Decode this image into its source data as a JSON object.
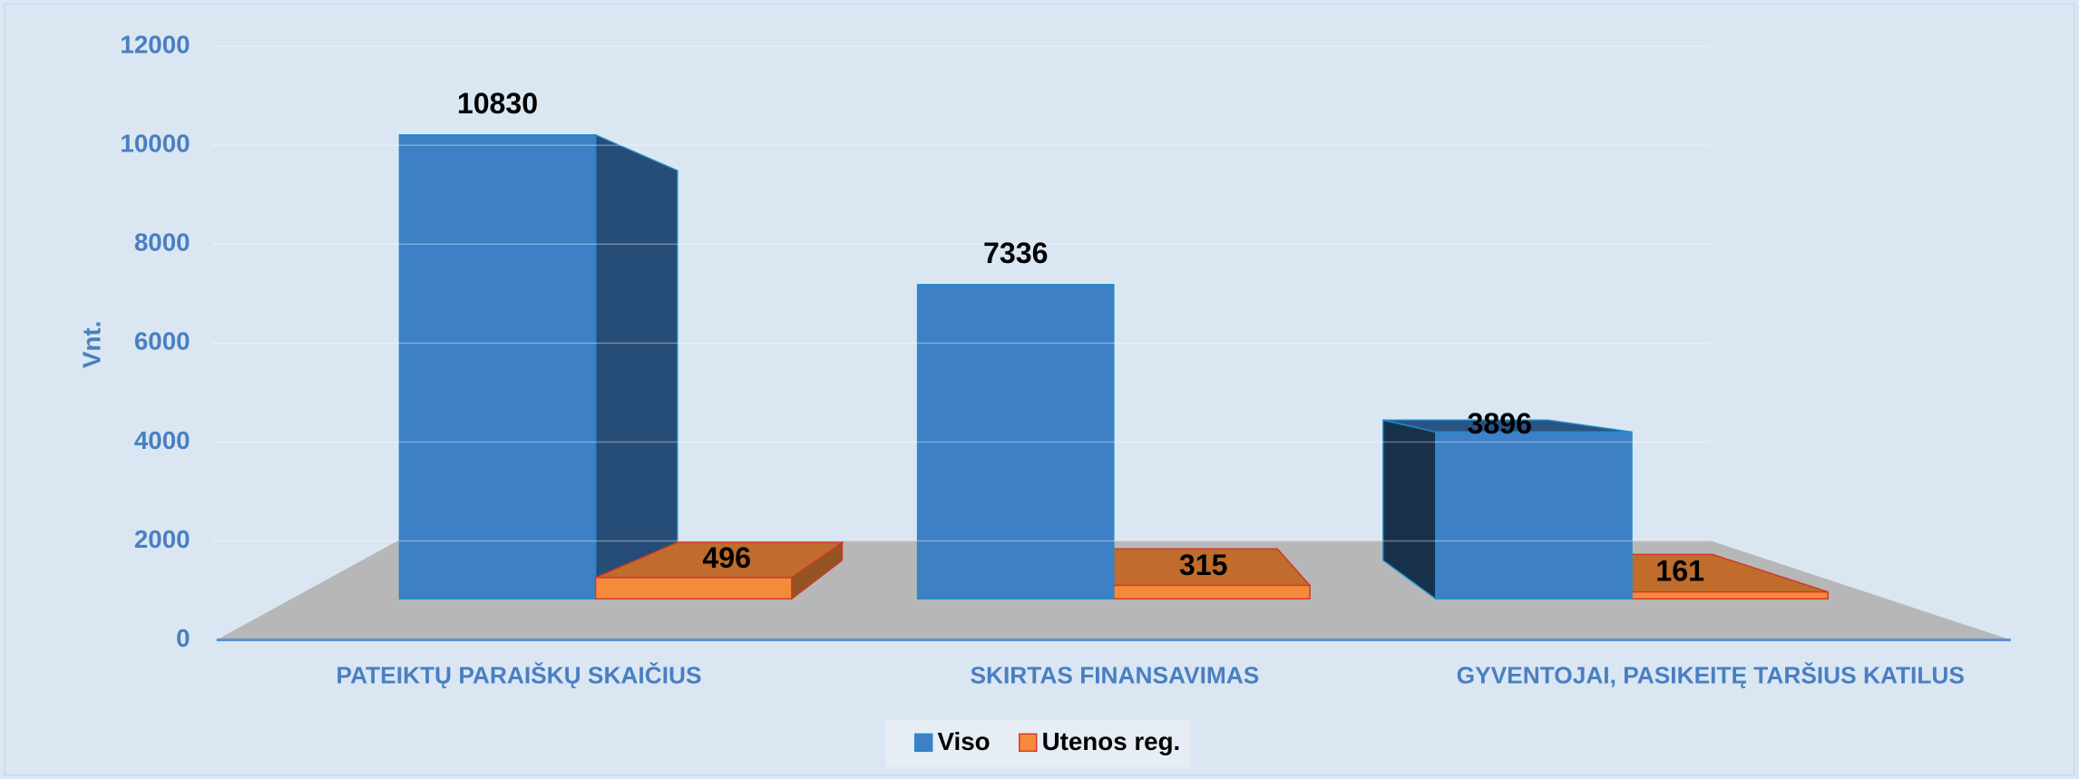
{
  "chart_data": {
    "type": "bar3d",
    "y_axis_label": "Vnt.",
    "categories": [
      "PATEIKTŲ PARAIŠKŲ SKAIČIUS",
      "SKIRTAS FINANSAVIMAS",
      "GYVENTOJAI, PASIKEITĘ TARŠIUS KATILUS"
    ],
    "series": [
      {
        "name": "Viso",
        "color": "#3e80c6",
        "values": [
          10830,
          7336,
          3896
        ]
      },
      {
        "name": "Utenos reg.",
        "color": "#f58a3a",
        "values": [
          496,
          315,
          161
        ]
      }
    ],
    "ylim": [
      0,
      12000
    ],
    "yticks": [
      0,
      2000,
      4000,
      6000,
      8000,
      10000,
      12000
    ],
    "grid": true,
    "legend": "bottom"
  }
}
